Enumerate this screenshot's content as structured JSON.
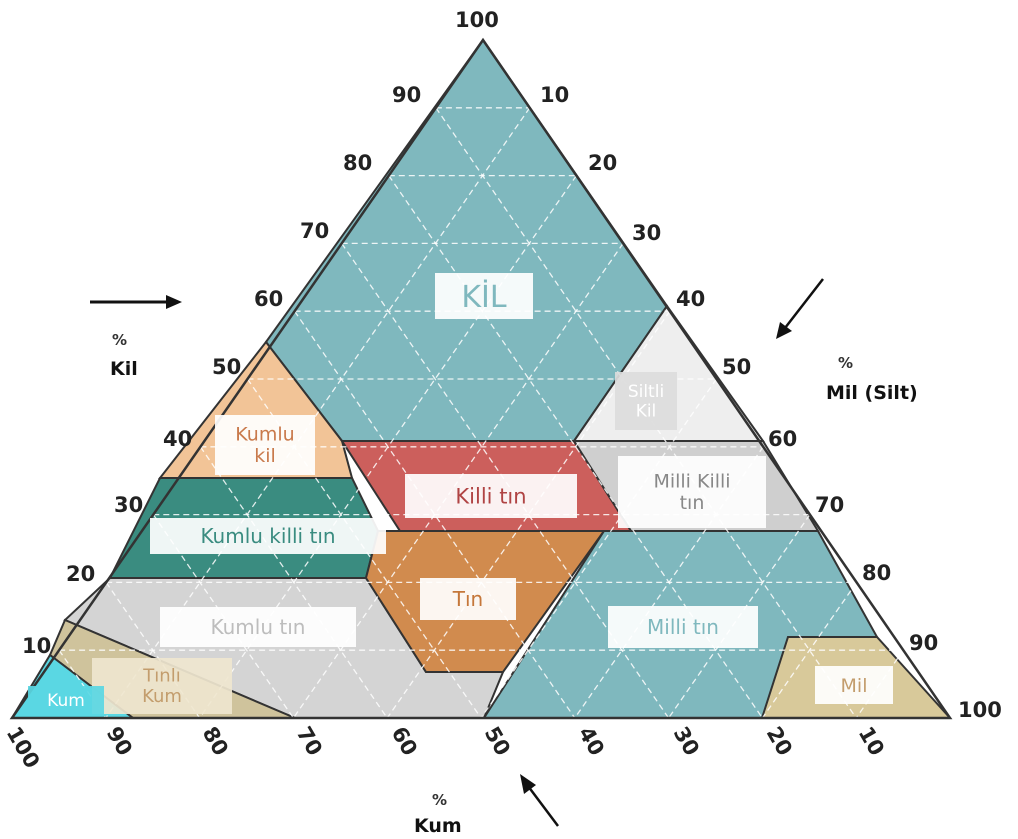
{
  "axes": {
    "clay": {
      "percent_sign": "%",
      "name": "Kil",
      "ticks": [
        "100",
        "90",
        "80",
        "70",
        "60",
        "50",
        "40",
        "30",
        "20",
        "10"
      ]
    },
    "silt": {
      "percent_sign": "%",
      "name": "Mil (Silt)",
      "ticks": [
        "10",
        "20",
        "30",
        "40",
        "50",
        "60",
        "70",
        "80",
        "90",
        "100"
      ]
    },
    "sand": {
      "percent_sign": "%",
      "name": "Kum",
      "ticks": [
        "100",
        "90",
        "80",
        "70",
        "60",
        "50",
        "40",
        "30",
        "20",
        "10"
      ]
    }
  },
  "regions": [
    {
      "id": "kil",
      "label": "KİL",
      "color": "#7fb8be"
    },
    {
      "id": "siltli-kil",
      "label": "Siltli Kil",
      "color": "#eeeeee"
    },
    {
      "id": "kumlu-kil",
      "label": "Kumlu kil",
      "color": "#f2c497"
    },
    {
      "id": "killi-tin",
      "label": "Killi tın",
      "color": "#cc5f5c"
    },
    {
      "id": "milli-killi-tin",
      "label": "Milli Killi tın",
      "color": "#cfcfcf"
    },
    {
      "id": "kumlu-killi-tin",
      "label": "Kumlu killi tın",
      "color": "#3a8c80"
    },
    {
      "id": "tin",
      "label": "Tın",
      "color": "#d18b4e"
    },
    {
      "id": "milli-tin",
      "label": "Milli tın",
      "color": "#7fb8be"
    },
    {
      "id": "kumlu-tin",
      "label": "Kumlu tın",
      "color": "#d4d4d4"
    },
    {
      "id": "tinli-kum",
      "label": "Tınlı Kum",
      "color": "#cfc39c"
    },
    {
      "id": "kum",
      "label": "Kum",
      "color": "#5ad7e3"
    },
    {
      "id": "mil",
      "label": "Mil",
      "color": "#d8c99a"
    }
  ]
}
